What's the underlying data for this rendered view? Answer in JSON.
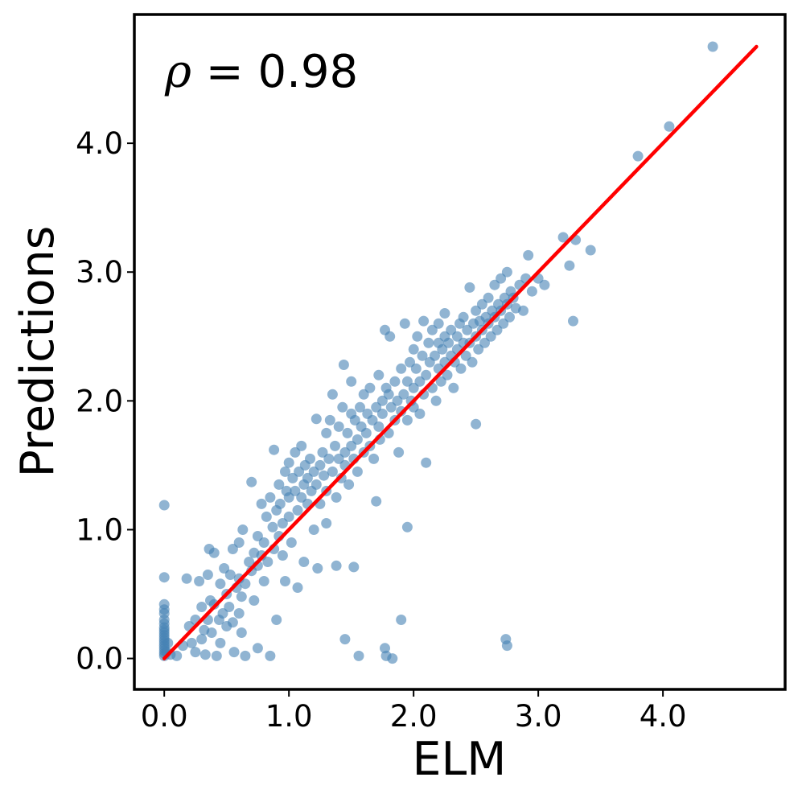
{
  "chart_data": {
    "type": "scatter",
    "title": "",
    "xlabel": "ELM",
    "ylabel": "Predictions",
    "xlim": [
      -0.24,
      4.98
    ],
    "ylim": [
      -0.24,
      5.0
    ],
    "xticks": [
      0.0,
      1.0,
      2.0,
      3.0,
      4.0
    ],
    "yticks": [
      0.0,
      1.0,
      2.0,
      3.0,
      4.0
    ],
    "xtick_labels": [
      "0.0",
      "1.0",
      "2.0",
      "3.0",
      "4.0"
    ],
    "ytick_labels": [
      "0.0",
      "1.0",
      "2.0",
      "3.0",
      "4.0"
    ],
    "grid": false,
    "annotation": {
      "symbol": "ρ",
      "text": " = 0.98",
      "placement": "top-left"
    },
    "point_color": "#4682b4",
    "line_color": "#ff0000",
    "fit_line": {
      "x": [
        0.0,
        4.75
      ],
      "y": [
        0.0,
        4.75
      ]
    },
    "points": [
      [
        0,
        0.02
      ],
      [
        0,
        0.04
      ],
      [
        0,
        0.06
      ],
      [
        0,
        0.08
      ],
      [
        0,
        0.1
      ],
      [
        0,
        0.12
      ],
      [
        0,
        0.14
      ],
      [
        0,
        0.16
      ],
      [
        0,
        0.18
      ],
      [
        0,
        0.2
      ],
      [
        0,
        0.22
      ],
      [
        0,
        0.24
      ],
      [
        0,
        0.27
      ],
      [
        0,
        0.3
      ],
      [
        0,
        0.35
      ],
      [
        0,
        0.38
      ],
      [
        0,
        0.42
      ],
      [
        0,
        0.63
      ],
      [
        0,
        1.19
      ],
      [
        0.02,
        0.05
      ],
      [
        0.03,
        0.12
      ],
      [
        0.05,
        0.03
      ],
      [
        0.1,
        0.02
      ],
      [
        0.15,
        0.1
      ],
      [
        0.18,
        0.62
      ],
      [
        0.2,
        0.25
      ],
      [
        0.22,
        0.12
      ],
      [
        0.25,
        0.3
      ],
      [
        0.25,
        0.05
      ],
      [
        0.28,
        0.6
      ],
      [
        0.3,
        0.4
      ],
      [
        0.3,
        0.15
      ],
      [
        0.32,
        0.22
      ],
      [
        0.33,
        0.03
      ],
      [
        0.35,
        0.65
      ],
      [
        0.35,
        0.3
      ],
      [
        0.36,
        0.85
      ],
      [
        0.37,
        0.45
      ],
      [
        0.38,
        0.2
      ],
      [
        0.4,
        0.82
      ],
      [
        0.4,
        0.42
      ],
      [
        0.42,
        0.02
      ],
      [
        0.44,
        0.3
      ],
      [
        0.45,
        0.58
      ],
      [
        0.45,
        0.12
      ],
      [
        0.47,
        0.35
      ],
      [
        0.48,
        0.7
      ],
      [
        0.5,
        0.5
      ],
      [
        0.5,
        0.25
      ],
      [
        0.52,
        0.4
      ],
      [
        0.53,
        0.65
      ],
      [
        0.55,
        0.28
      ],
      [
        0.55,
        0.85
      ],
      [
        0.56,
        0.05
      ],
      [
        0.58,
        0.55
      ],
      [
        0.6,
        0.62
      ],
      [
        0.6,
        0.35
      ],
      [
        0.6,
        0.9
      ],
      [
        0.62,
        0.48
      ],
      [
        0.62,
        0.2
      ],
      [
        0.63,
        1.0
      ],
      [
        0.65,
        0.58
      ],
      [
        0.65,
        0.02
      ],
      [
        0.68,
        0.75
      ],
      [
        0.7,
        1.37
      ],
      [
        0.7,
        0.68
      ],
      [
        0.72,
        0.82
      ],
      [
        0.72,
        0.45
      ],
      [
        0.75,
        0.72
      ],
      [
        0.75,
        0.95
      ],
      [
        0.75,
        0.08
      ],
      [
        0.78,
        1.2
      ],
      [
        0.78,
        0.8
      ],
      [
        0.8,
        0.9
      ],
      [
        0.8,
        0.6
      ],
      [
        0.82,
        1.1
      ],
      [
        0.83,
        0.75
      ],
      [
        0.85,
        1.25
      ],
      [
        0.85,
        0.02
      ],
      [
        0.87,
        1.02
      ],
      [
        0.88,
        0.85
      ],
      [
        0.88,
        1.62
      ],
      [
        0.9,
        0.3
      ],
      [
        0.9,
        1.15
      ],
      [
        0.92,
        0.95
      ],
      [
        0.92,
        1.35
      ],
      [
        0.93,
        1.2
      ],
      [
        0.95,
        0.8
      ],
      [
        0.95,
        1.05
      ],
      [
        0.97,
        1.45
      ],
      [
        0.97,
        0.6
      ],
      [
        0.98,
        1.3
      ],
      [
        1.0,
        1.1
      ],
      [
        1.0,
        1.52
      ],
      [
        1.0,
        1.25
      ],
      [
        1.02,
        0.9
      ],
      [
        1.03,
        1.4
      ],
      [
        1.05,
        1.3
      ],
      [
        1.05,
        1.6
      ],
      [
        1.07,
        1.15
      ],
      [
        1.07,
        0.55
      ],
      [
        1.08,
        1.45
      ],
      [
        1.1,
        1.25
      ],
      [
        1.1,
        1.65
      ],
      [
        1.12,
        1.35
      ],
      [
        1.12,
        0.75
      ],
      [
        1.13,
        1.5
      ],
      [
        1.15,
        1.4
      ],
      [
        1.15,
        1.2
      ],
      [
        1.17,
        1.55
      ],
      [
        1.18,
        1.3
      ],
      [
        1.2,
        1.45
      ],
      [
        1.2,
        1.0
      ],
      [
        1.22,
        1.86
      ],
      [
        1.22,
        1.35
      ],
      [
        1.23,
        0.7
      ],
      [
        1.25,
        1.5
      ],
      [
        1.25,
        1.2
      ],
      [
        1.27,
        1.6
      ],
      [
        1.28,
        1.42
      ],
      [
        1.3,
        1.75
      ],
      [
        1.3,
        1.3
      ],
      [
        1.3,
        1.05
      ],
      [
        1.32,
        1.55
      ],
      [
        1.33,
        1.85
      ],
      [
        1.35,
        1.45
      ],
      [
        1.35,
        2.05
      ],
      [
        1.37,
        1.65
      ],
      [
        1.38,
        1.25
      ],
      [
        1.38,
        0.72
      ],
      [
        1.4,
        1.55
      ],
      [
        1.4,
        1.8
      ],
      [
        1.42,
        1.4
      ],
      [
        1.43,
        1.95
      ],
      [
        1.44,
        2.28
      ],
      [
        1.45,
        1.6
      ],
      [
        1.45,
        1.5
      ],
      [
        1.45,
        0.15
      ],
      [
        1.47,
        1.75
      ],
      [
        1.48,
        1.35
      ],
      [
        1.5,
        1.65
      ],
      [
        1.5,
        1.9
      ],
      [
        1.5,
        2.15
      ],
      [
        1.52,
        1.55
      ],
      [
        1.52,
        0.71
      ],
      [
        1.53,
        1.85
      ],
      [
        1.55,
        1.7
      ],
      [
        1.55,
        1.45
      ],
      [
        1.56,
        0.02
      ],
      [
        1.57,
        1.95
      ],
      [
        1.58,
        1.8
      ],
      [
        1.6,
        1.6
      ],
      [
        1.6,
        2.05
      ],
      [
        1.62,
        1.75
      ],
      [
        1.63,
        1.9
      ],
      [
        1.65,
        1.65
      ],
      [
        1.65,
        2.1
      ],
      [
        1.67,
        1.85
      ],
      [
        1.68,
        1.55
      ],
      [
        1.7,
        1.95
      ],
      [
        1.7,
        1.22
      ],
      [
        1.72,
        1.8
      ],
      [
        1.72,
        2.2
      ],
      [
        1.73,
        1.7
      ],
      [
        1.75,
        2.0
      ],
      [
        1.75,
        1.9
      ],
      [
        1.77,
        2.55
      ],
      [
        1.77,
        0.08
      ],
      [
        1.78,
        2.1
      ],
      [
        1.78,
        0.02
      ],
      [
        1.8,
        1.75
      ],
      [
        1.8,
        2.05
      ],
      [
        1.81,
        2.5
      ],
      [
        1.82,
        1.95
      ],
      [
        1.83,
        0.0
      ],
      [
        1.85,
        2.15
      ],
      [
        1.85,
        1.85
      ],
      [
        1.87,
        2.0
      ],
      [
        1.88,
        1.6
      ],
      [
        1.9,
        2.25
      ],
      [
        1.9,
        1.92
      ],
      [
        1.9,
        0.3
      ],
      [
        1.92,
        2.05
      ],
      [
        1.93,
        2.6
      ],
      [
        1.95,
        2.15
      ],
      [
        1.95,
        1.85
      ],
      [
        1.95,
        1.02
      ],
      [
        1.97,
        2.3
      ],
      [
        1.98,
        2.0
      ],
      [
        2.0,
        2.4
      ],
      [
        2.0,
        2.1
      ],
      [
        2.0,
        1.95
      ],
      [
        2.02,
        2.25
      ],
      [
        2.03,
        2.5
      ],
      [
        2.05,
        2.15
      ],
      [
        2.05,
        1.9
      ],
      [
        2.07,
        2.35
      ],
      [
        2.08,
        2.05
      ],
      [
        2.08,
        2.62
      ],
      [
        2.1,
        2.2
      ],
      [
        2.1,
        1.52
      ],
      [
        2.12,
        2.45
      ],
      [
        2.13,
        2.3
      ],
      [
        2.15,
        2.1
      ],
      [
        2.15,
        2.55
      ],
      [
        2.17,
        2.35
      ],
      [
        2.18,
        2.0
      ],
      [
        2.2,
        2.45
      ],
      [
        2.2,
        2.25
      ],
      [
        2.2,
        2.6
      ],
      [
        2.22,
        2.15
      ],
      [
        2.23,
        2.4
      ],
      [
        2.25,
        2.3
      ],
      [
        2.25,
        2.5
      ],
      [
        2.25,
        2.68
      ],
      [
        2.27,
        2.2
      ],
      [
        2.28,
        2.45
      ],
      [
        2.3,
        2.35
      ],
      [
        2.3,
        2.55
      ],
      [
        2.32,
        2.1
      ],
      [
        2.33,
        2.3
      ],
      [
        2.35,
        2.5
      ],
      [
        2.35,
        2.4
      ],
      [
        2.37,
        2.6
      ],
      [
        2.38,
        2.25
      ],
      [
        2.4,
        2.45
      ],
      [
        2.4,
        2.65
      ],
      [
        2.42,
        2.35
      ],
      [
        2.43,
        2.55
      ],
      [
        2.45,
        2.88
      ],
      [
        2.45,
        2.45
      ],
      [
        2.47,
        2.3
      ],
      [
        2.48,
        2.6
      ],
      [
        2.5,
        2.5
      ],
      [
        2.5,
        2.7
      ],
      [
        2.5,
        1.82
      ],
      [
        2.52,
        2.4
      ],
      [
        2.53,
        2.62
      ],
      [
        2.55,
        2.55
      ],
      [
        2.55,
        2.75
      ],
      [
        2.57,
        2.45
      ],
      [
        2.58,
        2.65
      ],
      [
        2.6,
        2.6
      ],
      [
        2.6,
        2.8
      ],
      [
        2.62,
        2.5
      ],
      [
        2.63,
        2.7
      ],
      [
        2.65,
        2.65
      ],
      [
        2.65,
        2.9
      ],
      [
        2.67,
        2.55
      ],
      [
        2.68,
        2.75
      ],
      [
        2.7,
        2.7
      ],
      [
        2.7,
        2.95
      ],
      [
        2.72,
        2.6
      ],
      [
        2.73,
        2.8
      ],
      [
        2.74,
        0.15
      ],
      [
        2.75,
        2.75
      ],
      [
        2.75,
        3.0
      ],
      [
        2.75,
        0.1
      ],
      [
        2.77,
        2.65
      ],
      [
        2.78,
        2.85
      ],
      [
        2.8,
        2.8
      ],
      [
        2.82,
        2.72
      ],
      [
        2.85,
        2.9
      ],
      [
        2.88,
        2.7
      ],
      [
        2.9,
        2.95
      ],
      [
        2.92,
        3.13
      ],
      [
        2.95,
        2.85
      ],
      [
        3.0,
        2.95
      ],
      [
        3.05,
        2.9
      ],
      [
        3.2,
        3.27
      ],
      [
        3.25,
        3.05
      ],
      [
        3.28,
        2.62
      ],
      [
        3.3,
        3.25
      ],
      [
        3.42,
        3.17
      ],
      [
        3.8,
        3.9
      ],
      [
        4.05,
        4.13
      ],
      [
        4.4,
        4.75
      ]
    ]
  }
}
